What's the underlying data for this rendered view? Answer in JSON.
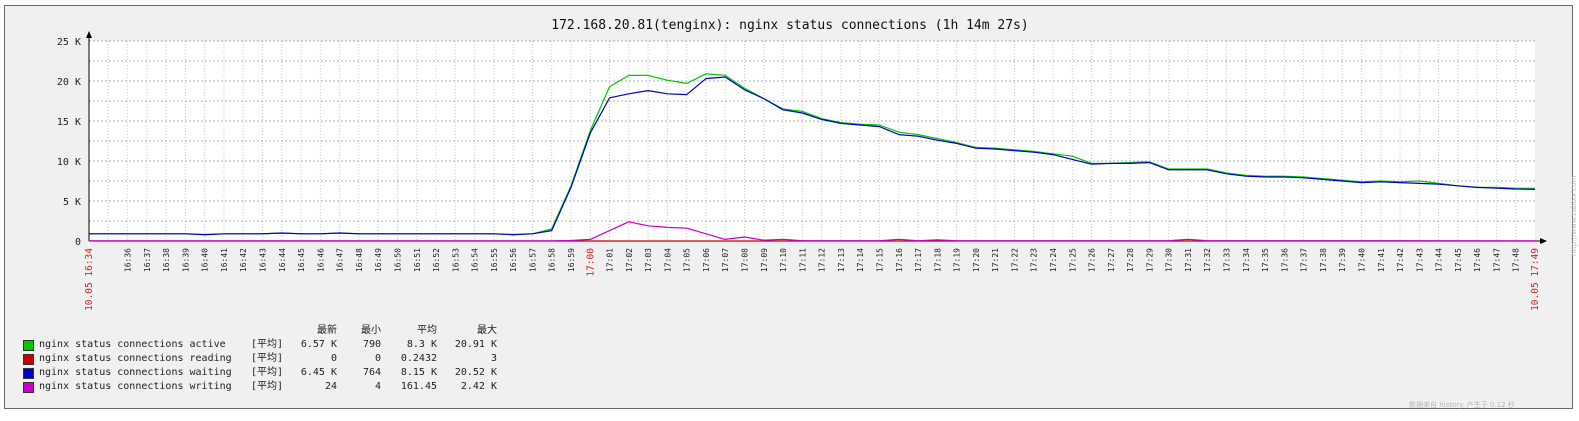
{
  "chart_data": {
    "type": "line",
    "title": "172.168.20.81(tenginx): nginx status connections (1h 14m 27s)",
    "xlabel": "",
    "ylabel": "",
    "ylim": [
      0,
      25000
    ],
    "y_ticks": [
      "0",
      "5 K",
      "10 K",
      "15 K",
      "20 K",
      "25 K"
    ],
    "x_start_label": "10.05 16:34",
    "x_end_label": "10.05 17:49",
    "x_red_label": "17:00",
    "x_labels": [
      "16:36",
      "16:37",
      "16:38",
      "16:39",
      "16:40",
      "16:41",
      "16:42",
      "16:43",
      "16:44",
      "16:45",
      "16:46",
      "16:47",
      "16:48",
      "16:49",
      "16:50",
      "16:51",
      "16:52",
      "16:53",
      "16:54",
      "16:55",
      "16:56",
      "16:57",
      "16:58",
      "16:59",
      "17:00",
      "17:01",
      "17:02",
      "17:03",
      "17:04",
      "17:05",
      "17:06",
      "17:07",
      "17:08",
      "17:09",
      "17:10",
      "17:11",
      "17:12",
      "17:13",
      "17:14",
      "17:15",
      "17:16",
      "17:17",
      "17:18",
      "17:19",
      "17:20",
      "17:21",
      "17:22",
      "17:23",
      "17:24",
      "17:25",
      "17:26",
      "17:27",
      "17:28",
      "17:29",
      "17:30",
      "17:31",
      "17:32",
      "17:33",
      "17:34",
      "17:35",
      "17:36",
      "17:37",
      "17:38",
      "17:39",
      "17:40",
      "17:41",
      "17:42",
      "17:43",
      "17:44",
      "17:45",
      "17:46",
      "17:47",
      "17:48"
    ],
    "grid": true,
    "legend_position": "bottom-left",
    "series": [
      {
        "name": "nginx status connections active",
        "color": "#00c800",
        "points": [
          [
            "16:34",
            900
          ],
          [
            "16:35",
            900
          ],
          [
            "16:38",
            900
          ],
          [
            "16:39",
            900
          ],
          [
            "16:40",
            800
          ],
          [
            "16:41",
            900
          ],
          [
            "16:43",
            900
          ],
          [
            "16:44",
            1000
          ],
          [
            "16:45",
            900
          ],
          [
            "16:46",
            900
          ],
          [
            "16:47",
            1000
          ],
          [
            "16:48",
            900
          ],
          [
            "16:55",
            900
          ],
          [
            "16:56",
            800
          ],
          [
            "16:57",
            900
          ],
          [
            "16:58",
            1500
          ],
          [
            "16:59",
            6900
          ],
          [
            "17:00",
            13800
          ],
          [
            "17:01",
            19300
          ],
          [
            "17:02",
            20700
          ],
          [
            "17:03",
            20700
          ],
          [
            "17:04",
            20100
          ],
          [
            "17:05",
            19700
          ],
          [
            "17:06",
            20900
          ],
          [
            "17:07",
            20700
          ],
          [
            "17:08",
            19100
          ],
          [
            "17:09",
            17800
          ],
          [
            "17:10",
            16500
          ],
          [
            "17:11",
            16200
          ],
          [
            "17:12",
            15300
          ],
          [
            "17:13",
            14800
          ],
          [
            "17:14",
            14600
          ],
          [
            "17:15",
            14500
          ],
          [
            "17:16",
            13600
          ],
          [
            "17:17",
            13300
          ],
          [
            "17:18",
            12800
          ],
          [
            "17:19",
            12300
          ],
          [
            "17:20",
            11700
          ],
          [
            "17:21",
            11600
          ],
          [
            "17:22",
            11400
          ],
          [
            "17:23",
            11200
          ],
          [
            "17:24",
            10900
          ],
          [
            "17:25",
            10600
          ],
          [
            "17:26",
            9700
          ],
          [
            "17:27",
            9700
          ],
          [
            "17:28",
            9800
          ],
          [
            "17:29",
            9900
          ],
          [
            "17:30",
            9000
          ],
          [
            "17:31",
            9000
          ],
          [
            "17:32",
            9000
          ],
          [
            "17:33",
            8500
          ],
          [
            "17:34",
            8200
          ],
          [
            "17:35",
            8100
          ],
          [
            "17:36",
            8100
          ],
          [
            "17:37",
            8000
          ],
          [
            "17:38",
            7800
          ],
          [
            "17:39",
            7600
          ],
          [
            "17:40",
            7400
          ],
          [
            "17:41",
            7500
          ],
          [
            "17:42",
            7400
          ],
          [
            "17:43",
            7500
          ],
          [
            "17:44",
            7200
          ],
          [
            "17:45",
            6900
          ],
          [
            "17:46",
            6700
          ],
          [
            "17:47",
            6700
          ],
          [
            "17:48",
            6600
          ],
          [
            "17:49",
            6570
          ]
        ]
      },
      {
        "name": "nginx status connections reading",
        "color": "#c80000",
        "points": [
          [
            "16:34",
            0
          ],
          [
            "17:49",
            0
          ]
        ]
      },
      {
        "name": "nginx status connections waiting",
        "color": "#0000c8",
        "points": [
          [
            "16:34",
            900
          ],
          [
            "16:35",
            900
          ],
          [
            "16:38",
            900
          ],
          [
            "16:39",
            900
          ],
          [
            "16:40",
            800
          ],
          [
            "16:41",
            900
          ],
          [
            "16:43",
            900
          ],
          [
            "16:44",
            1000
          ],
          [
            "16:45",
            900
          ],
          [
            "16:46",
            900
          ],
          [
            "16:47",
            1000
          ],
          [
            "16:48",
            900
          ],
          [
            "16:55",
            900
          ],
          [
            "16:56",
            800
          ],
          [
            "16:57",
            900
          ],
          [
            "16:58",
            1300
          ],
          [
            "16:59",
            6700
          ],
          [
            "17:00",
            13500
          ],
          [
            "17:01",
            17900
          ],
          [
            "17:02",
            18400
          ],
          [
            "17:03",
            18800
          ],
          [
            "17:04",
            18400
          ],
          [
            "17:05",
            18300
          ],
          [
            "17:06",
            20300
          ],
          [
            "17:07",
            20500
          ],
          [
            "17:08",
            18900
          ],
          [
            "17:09",
            17800
          ],
          [
            "17:10",
            16400
          ],
          [
            "17:11",
            16000
          ],
          [
            "17:12",
            15200
          ],
          [
            "17:13",
            14700
          ],
          [
            "17:14",
            14500
          ],
          [
            "17:15",
            14300
          ],
          [
            "17:16",
            13300
          ],
          [
            "17:17",
            13100
          ],
          [
            "17:18",
            12600
          ],
          [
            "17:19",
            12200
          ],
          [
            "17:20",
            11600
          ],
          [
            "17:21",
            11500
          ],
          [
            "17:22",
            11300
          ],
          [
            "17:23",
            11100
          ],
          [
            "17:24",
            10800
          ],
          [
            "17:25",
            10200
          ],
          [
            "17:26",
            9600
          ],
          [
            "17:27",
            9700
          ],
          [
            "17:28",
            9700
          ],
          [
            "17:29",
            9800
          ],
          [
            "17:30",
            8900
          ],
          [
            "17:31",
            8900
          ],
          [
            "17:32",
            8900
          ],
          [
            "17:33",
            8400
          ],
          [
            "17:34",
            8100
          ],
          [
            "17:35",
            8000
          ],
          [
            "17:36",
            8000
          ],
          [
            "17:37",
            7900
          ],
          [
            "17:38",
            7700
          ],
          [
            "17:39",
            7500
          ],
          [
            "17:40",
            7300
          ],
          [
            "17:41",
            7400
          ],
          [
            "17:42",
            7300
          ],
          [
            "17:43",
            7200
          ],
          [
            "17:44",
            7100
          ],
          [
            "17:45",
            6900
          ],
          [
            "17:46",
            6700
          ],
          [
            "17:47",
            6600
          ],
          [
            "17:48",
            6500
          ],
          [
            "17:49",
            6450
          ]
        ]
      },
      {
        "name": "nginx status connections writing",
        "color": "#c800c8",
        "points": [
          [
            "16:34",
            24
          ],
          [
            "16:58",
            24
          ],
          [
            "16:59",
            60
          ],
          [
            "17:00",
            200
          ],
          [
            "17:01",
            1300
          ],
          [
            "17:02",
            2400
          ],
          [
            "17:03",
            1900
          ],
          [
            "17:04",
            1700
          ],
          [
            "17:05",
            1600
          ],
          [
            "17:06",
            900
          ],
          [
            "17:07",
            200
          ],
          [
            "17:08",
            500
          ],
          [
            "17:09",
            100
          ],
          [
            "17:10",
            200
          ],
          [
            "17:11",
            40
          ],
          [
            "17:15",
            40
          ],
          [
            "17:16",
            200
          ],
          [
            "17:17",
            40
          ],
          [
            "17:18",
            150
          ],
          [
            "17:19",
            40
          ],
          [
            "17:30",
            40
          ],
          [
            "17:31",
            200
          ],
          [
            "17:32",
            40
          ],
          [
            "17:49",
            24
          ]
        ]
      }
    ]
  },
  "legend": {
    "headers": [
      "最新",
      "最小",
      "平均",
      "最大"
    ],
    "rows": [
      {
        "color": "#00c800",
        "name": "nginx status connections active",
        "func": "[平均]",
        "last": "6.57 K",
        "min": "790",
        "avg": "8.3 K",
        "max": "20.91 K"
      },
      {
        "color": "#c80000",
        "name": "nginx status connections reading",
        "func": "[平均]",
        "last": "0",
        "min": "0",
        "avg": "0.2432",
        "max": "3"
      },
      {
        "color": "#0000c8",
        "name": "nginx status connections waiting",
        "func": "[平均]",
        "last": "6.45 K",
        "min": "764",
        "avg": "8.15 K",
        "max": "20.52 K"
      },
      {
        "color": "#c800c8",
        "name": "nginx status connections writing",
        "func": "[平均]",
        "last": "24",
        "min": "4",
        "avg": "161.45",
        "max": "2.42 K"
      }
    ]
  },
  "footer": {
    "credit": "数据来自 history. 产生于 0.12 秒",
    "url": "http://www.zabbix.com"
  }
}
